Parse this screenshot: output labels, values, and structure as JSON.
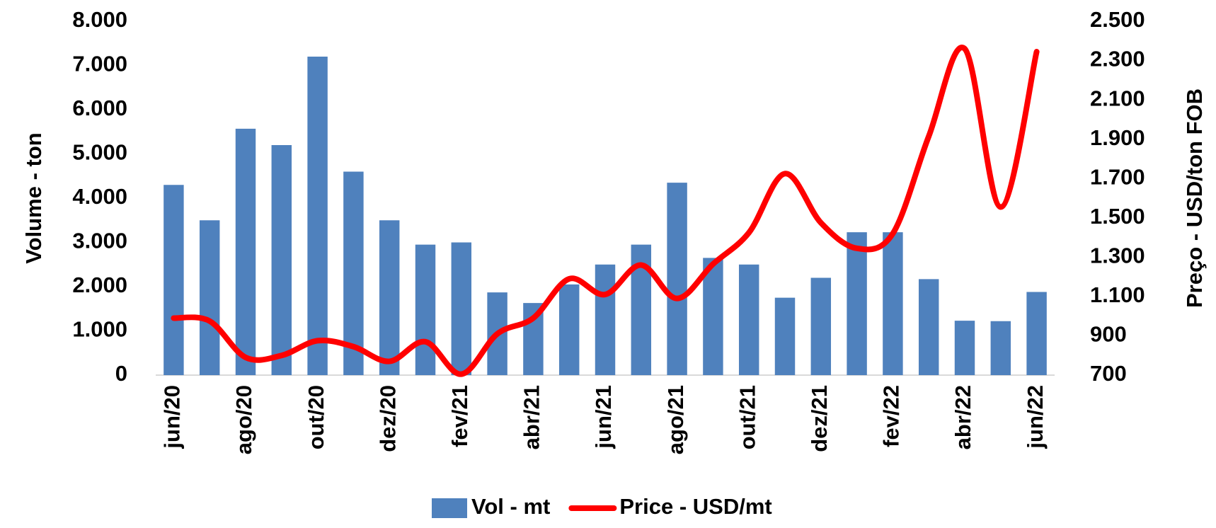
{
  "chart_data": {
    "type": "bar-line",
    "categories": [
      "jun/20",
      null,
      "ago/20",
      null,
      "out/20",
      null,
      "dez/20",
      null,
      "fev/21",
      null,
      "abr/21",
      null,
      "jun/21",
      null,
      "ago/21",
      null,
      "out/21",
      null,
      "dez/21",
      null,
      "fev/22",
      null,
      "abr/22",
      null,
      "jun/22"
    ],
    "y_label": "Volume - ton",
    "y2_label": "Preço - USD/ton FOB",
    "ylim": [
      0,
      8000
    ],
    "yticks": [
      0,
      {
        "value": 1000,
        "label": "1.000"
      },
      {
        "value": 2000,
        "label": "2.000"
      },
      {
        "value": 3000,
        "label": "3.000"
      },
      {
        "value": 4000,
        "label": "4.000"
      },
      {
        "value": 5000,
        "label": "5.000"
      },
      {
        "value": 6000,
        "label": "6.000"
      },
      {
        "value": 7000,
        "label": "7.000"
      },
      {
        "value": 8000,
        "label": "8.000"
      }
    ],
    "y2lim": [
      700,
      2500
    ],
    "y2ticks": [
      700,
      900,
      {
        "value": 1100,
        "label": "1.100"
      },
      {
        "value": 1300,
        "label": "1.300"
      },
      {
        "value": 1500,
        "label": "1.500"
      },
      {
        "value": 1700,
        "label": "1.700"
      },
      {
        "value": 1900,
        "label": "1.900"
      },
      {
        "value": 2100,
        "label": "2.100"
      },
      {
        "value": 2300,
        "label": "2.300"
      },
      {
        "value": 2500,
        "label": "2.500"
      }
    ],
    "legend": "bottom",
    "series": [
      {
        "name": "Vol - mt",
        "type": "bar",
        "axis": "y",
        "color": "#4f81bd",
        "values": [
          4300,
          3500,
          5570,
          5200,
          7200,
          4600,
          3500,
          2950,
          3000,
          1870,
          1630,
          2050,
          2500,
          2950,
          4350,
          2650,
          2500,
          1750,
          2200,
          3230,
          3230,
          2170,
          1230,
          1220,
          1880
        ]
      },
      {
        "name": "Price - USD/mt",
        "type": "line",
        "axis": "y2",
        "color": "#ff0000",
        "values": [
          990,
          975,
          790,
          800,
          875,
          845,
          770,
          870,
          705,
          910,
          990,
          1190,
          1110,
          1260,
          1090,
          1265,
          1425,
          1725,
          1475,
          1345,
          1420,
          1915,
          2360,
          1555,
          2345
        ]
      }
    ]
  }
}
